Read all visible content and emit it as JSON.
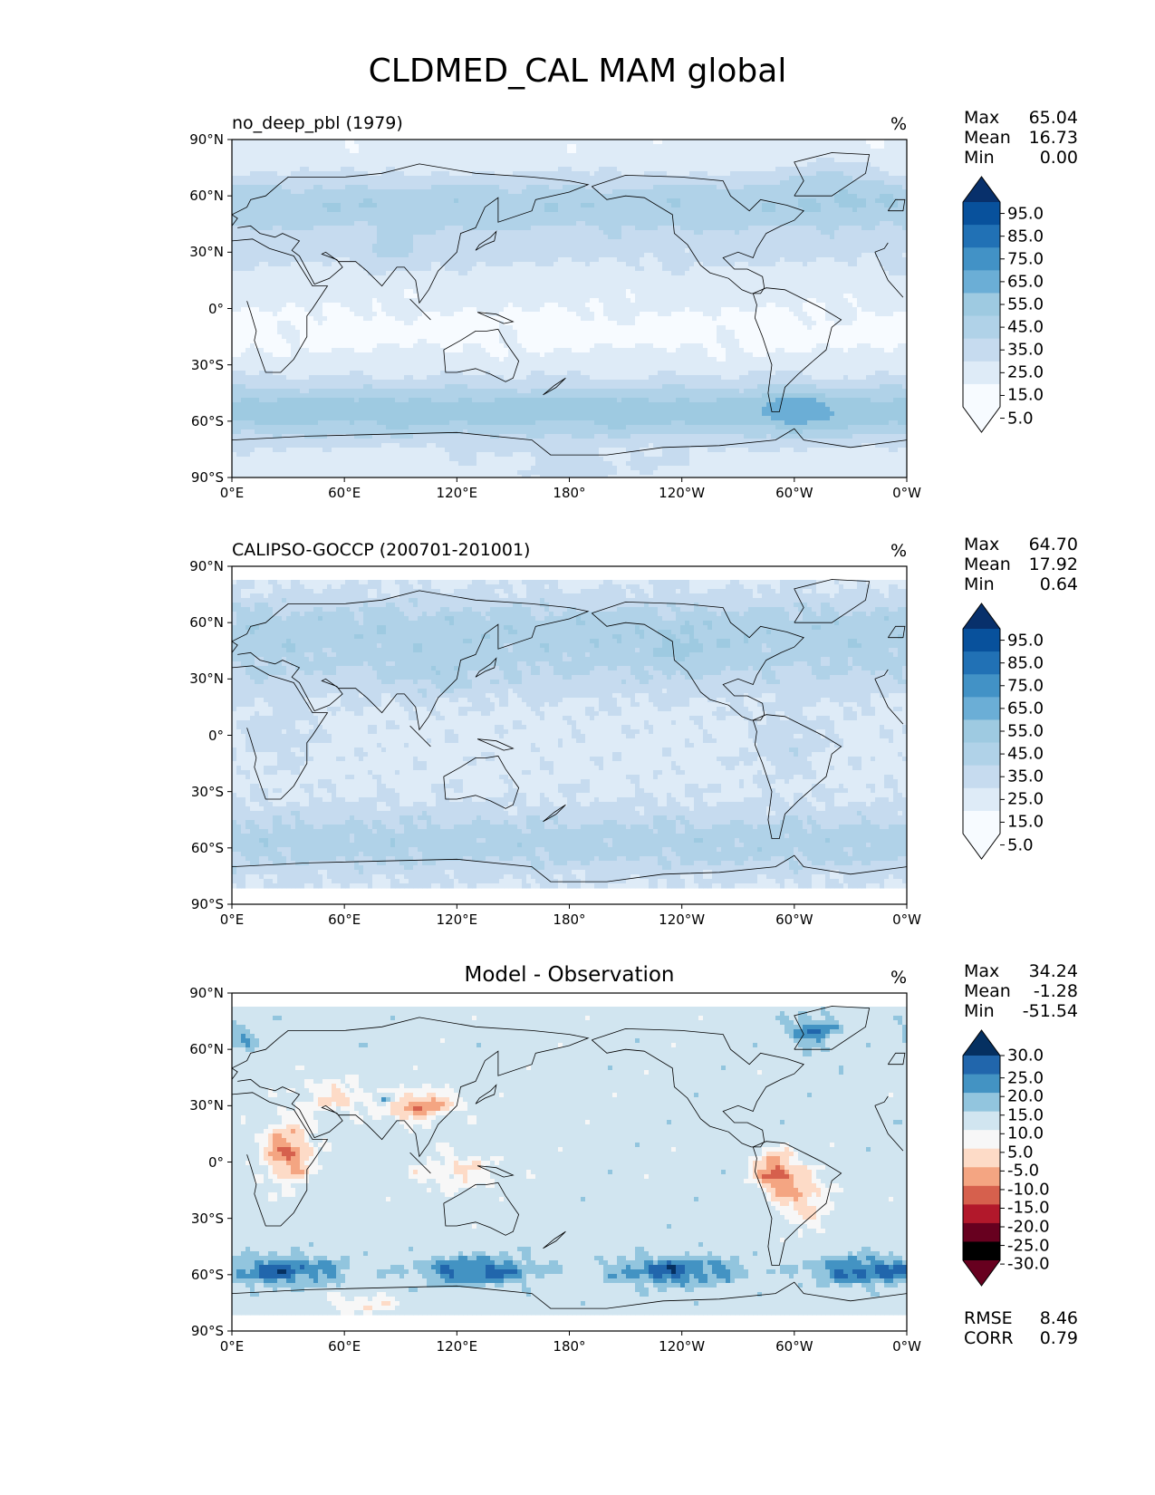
{
  "title": "CLDMED_CAL MAM global",
  "colors": {
    "blues": [
      "#f7fbff",
      "#deebf7",
      "#c6dbef",
      "#b0d2e8",
      "#9ecae1",
      "#6baed6",
      "#4292c6",
      "#2171b5",
      "#08519c",
      "#08306b"
    ],
    "diverging": [
      "#67001f",
      "#b2182b",
      "#d6604d",
      "#f4a582",
      "#fddbc7",
      "#f7f7f7",
      "#d1e5f0",
      "#92c5de",
      "#4393c3",
      "#2166ac",
      "#053061"
    ],
    "land": "#000000"
  },
  "panels": [
    {
      "id": "model",
      "title": "no_deep_pbl (1979)",
      "units": "%",
      "stats": [
        {
          "label": "Max",
          "value": "65.04"
        },
        {
          "label": "Mean",
          "value": "16.73"
        },
        {
          "label": "Min",
          "value": "0.00"
        }
      ],
      "colorbar": {
        "labels": [
          "95.0",
          "85.0",
          "75.0",
          "65.0",
          "55.0",
          "45.0",
          "35.0",
          "25.0",
          "15.0",
          "5.0"
        ]
      }
    },
    {
      "id": "obs",
      "title": "CALIPSO-GOCCP (200701-201001)",
      "units": "%",
      "stats": [
        {
          "label": "Max",
          "value": "64.70"
        },
        {
          "label": "Mean",
          "value": "17.92"
        },
        {
          "label": "Min",
          "value": "0.64"
        }
      ],
      "colorbar": {
        "labels": [
          "95.0",
          "85.0",
          "75.0",
          "65.0",
          "55.0",
          "45.0",
          "35.0",
          "25.0",
          "15.0",
          "5.0"
        ]
      }
    },
    {
      "id": "diff",
      "title": "Model - Observation",
      "units": "%",
      "stats": [
        {
          "label": "Max",
          "value": "34.24"
        },
        {
          "label": "Mean",
          "value": "-1.28"
        },
        {
          "label": "Min",
          "value": "-51.54"
        }
      ],
      "colorbar": {
        "labels": [
          "30.0",
          "25.0",
          "20.0",
          "15.0",
          "10.0",
          "5.0",
          "-5.0",
          "-10.0",
          "-15.0",
          "-20.0",
          "-25.0",
          "-30.0"
        ]
      },
      "metrics": [
        {
          "label": "RMSE",
          "value": "8.46"
        },
        {
          "label": "CORR",
          "value": "0.79"
        }
      ]
    }
  ],
  "axes": {
    "yticks": [
      "90°N",
      "60°N",
      "30°N",
      "0°",
      "30°S",
      "60°S",
      "90°S"
    ],
    "xticks": [
      "0°E",
      "60°E",
      "120°E",
      "180°",
      "120°W",
      "60°W",
      "0°W"
    ]
  },
  "chart_data": [
    {
      "type": "heatmap",
      "title": "no_deep_pbl (1979)",
      "units": "%",
      "xlim": [
        0,
        360
      ],
      "ylim": [
        -90,
        90
      ],
      "levels": [
        0,
        5,
        15,
        25,
        35,
        45,
        55,
        65,
        75,
        85,
        95,
        100
      ],
      "stats": {
        "max": 65.04,
        "mean": 16.73,
        "min": 0.0
      }
    },
    {
      "type": "heatmap",
      "title": "CALIPSO-GOCCP (200701-201001)",
      "units": "%",
      "xlim": [
        0,
        360
      ],
      "ylim": [
        -90,
        90
      ],
      "levels": [
        0,
        5,
        15,
        25,
        35,
        45,
        55,
        65,
        75,
        85,
        95,
        100
      ],
      "stats": {
        "max": 64.7,
        "mean": 17.92,
        "min": 0.64
      }
    },
    {
      "type": "heatmap",
      "title": "Model - Observation",
      "units": "%",
      "xlim": [
        0,
        360
      ],
      "ylim": [
        -90,
        90
      ],
      "levels": [
        -30,
        -25,
        -20,
        -15,
        -10,
        -5,
        5,
        10,
        15,
        20,
        25,
        30
      ],
      "stats": {
        "max": 34.24,
        "mean": -1.28,
        "min": -51.54,
        "rmse": 8.46,
        "corr": 0.79
      }
    }
  ]
}
